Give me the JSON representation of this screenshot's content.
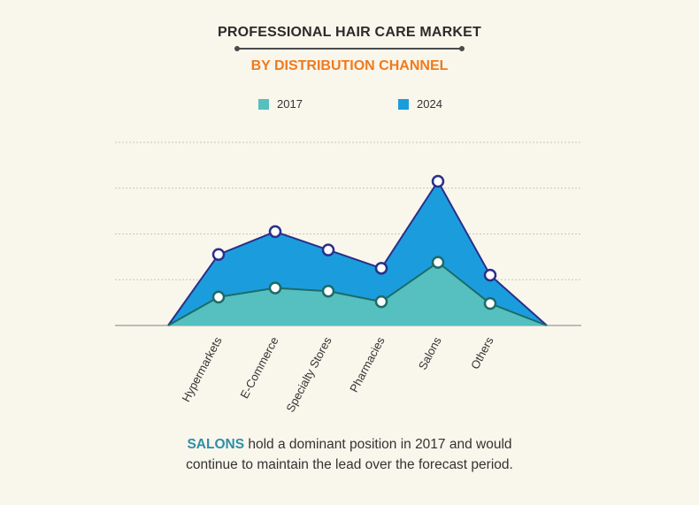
{
  "header": {
    "title": "PROFESSIONAL HAIR CARE MARKET",
    "subtitle": "BY DISTRIBUTION CHANNEL"
  },
  "legend": {
    "items": [
      {
        "label": "2017",
        "color": "#56bfc0"
      },
      {
        "label": "2024",
        "color": "#1b9ddd"
      }
    ]
  },
  "caption": {
    "highlight": "SALONS",
    "line1_rest": " hold a dominant position in 2017 and would",
    "line2": "continue to maintain the lead over the forecast period."
  },
  "chart_data": {
    "type": "area",
    "categories": [
      "Hypermarkets",
      "E-Commerce",
      "Specialty Stores",
      "Pharmacies",
      "Salons",
      "Others"
    ],
    "series": [
      {
        "name": "2024",
        "values": [
          1.55,
          2.05,
          1.65,
          1.25,
          3.15,
          1.1
        ],
        "color": "#1b9ddd",
        "line": "#2a2f8a"
      },
      {
        "name": "2017",
        "values": [
          0.62,
          0.82,
          0.75,
          0.52,
          1.38,
          0.48
        ],
        "color": "#56bfc0",
        "line": "#1c6b68"
      }
    ],
    "ylim": [
      0,
      4
    ],
    "grid": true,
    "legend": "top-center"
  }
}
